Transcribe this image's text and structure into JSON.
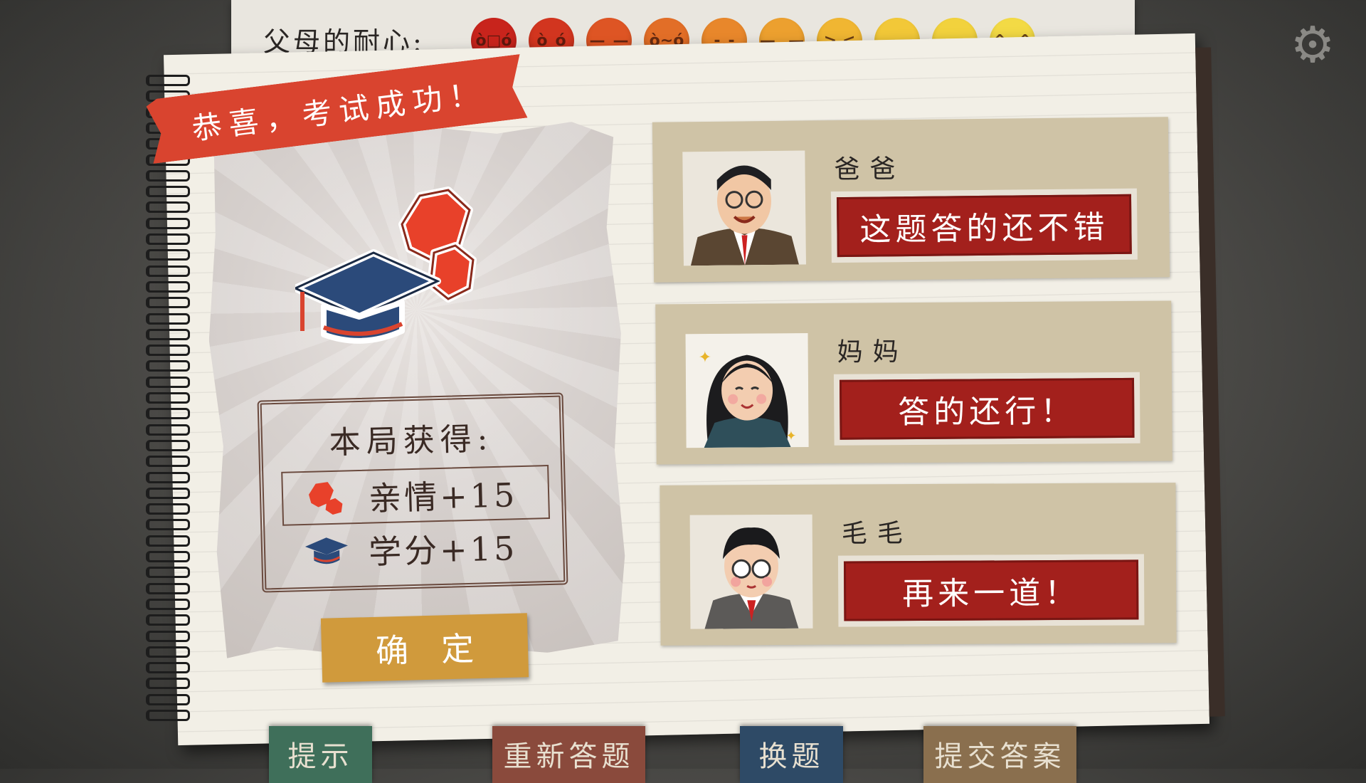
{
  "patience": {
    "label": "父母的耐心:",
    "levels": [
      {
        "icon": "furious-face-icon",
        "glyph": "ò□ó",
        "color": "#c8241c"
      },
      {
        "icon": "angry-face-icon",
        "glyph": "ò_ó",
        "color": "#d2351f"
      },
      {
        "icon": "annoyed-face-icon",
        "glyph": "—_—",
        "color": "#de5524"
      },
      {
        "icon": "frown-face-icon",
        "glyph": "ò~ó",
        "color": "#e26e27"
      },
      {
        "icon": "worried-face-icon",
        "glyph": "-_-",
        "color": "#e8872b"
      },
      {
        "icon": "neutral-face-icon",
        "glyph": "—‿—",
        "color": "#eca02f"
      },
      {
        "icon": "squint-face-icon",
        "glyph": "> <",
        "color": "#f0b632"
      },
      {
        "icon": "smile-face-icon",
        "glyph": "◡",
        "color": "#f2c838"
      },
      {
        "icon": "content-face-icon",
        "glyph": "-◡-",
        "color": "#f2d23d"
      },
      {
        "icon": "happy-face-icon",
        "glyph": "^◡^",
        "color": "#f3da45"
      }
    ]
  },
  "banner": "恭喜，考试成功！",
  "reward": {
    "title": "本局获得:",
    "items": [
      {
        "icon": "heart-gem-icon",
        "label": "亲情+15"
      },
      {
        "icon": "grad-cap-icon",
        "label": "学分+15"
      }
    ]
  },
  "confirm_label": "确定",
  "characters": [
    {
      "name": "爸爸",
      "comment": "这题答的还不错"
    },
    {
      "name": "妈妈",
      "comment": "答的还行！"
    },
    {
      "name": "毛毛",
      "comment": "再来一道！"
    }
  ],
  "bottom_tabs": [
    {
      "label": "提示",
      "color": "#3f6f5a"
    },
    {
      "label": "重新答题",
      "color": "#8a4a3c"
    },
    {
      "label": "换题",
      "color": "#2e4a66"
    },
    {
      "label": "提交答案",
      "color": "#8a6f4e"
    }
  ],
  "colors": {
    "ribbon": "#d9442f",
    "stamp": "#a3201c",
    "card": "#cfc3a6",
    "confirm": "#d09a3c"
  }
}
